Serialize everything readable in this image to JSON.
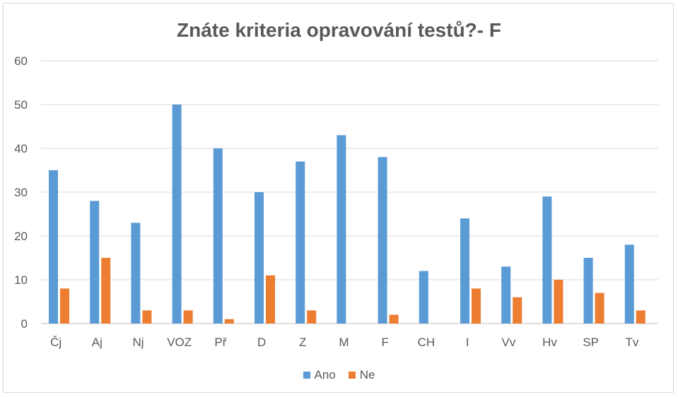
{
  "chart_data": {
    "type": "bar",
    "title": "Znáte kriteria opravování testů?- F",
    "categories": [
      "Čj",
      "Aj",
      "Nj",
      "VOZ",
      "Př",
      "D",
      "Z",
      "M",
      "F",
      "CH",
      "I",
      "Vv",
      "Hv",
      "SP",
      "Tv"
    ],
    "series": [
      {
        "name": "Ano",
        "color": "#5b9bd5",
        "values": [
          35,
          28,
          23,
          50,
          40,
          30,
          37,
          43,
          38,
          12,
          24,
          13,
          29,
          15,
          18
        ]
      },
      {
        "name": "Ne",
        "color": "#ed7d31",
        "values": [
          8,
          15,
          3,
          3,
          1,
          11,
          3,
          0,
          2,
          0,
          8,
          6,
          10,
          7,
          3
        ]
      }
    ],
    "yticks": [
      "0",
      "10",
      "20",
      "30",
      "40",
      "50",
      "60"
    ],
    "ylim": [
      0,
      60
    ],
    "grid": true,
    "legend": "bottom"
  }
}
